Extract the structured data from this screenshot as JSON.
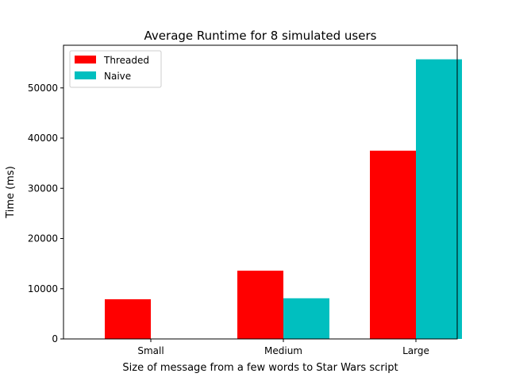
{
  "chart_data": {
    "type": "bar",
    "title": "Average Runtime for 8 simulated users",
    "xlabel": "Size of message from a few words to Star Wars script",
    "ylabel": "Time (ms)",
    "categories": [
      "Small",
      "Medium",
      "Large"
    ],
    "series": [
      {
        "name": "Threaded",
        "color": "#ff0000",
        "values": [
          7900,
          13600,
          37500
        ]
      },
      {
        "name": "Naive",
        "color": "#00bfbf",
        "values": [
          0,
          8100,
          55700
        ]
      }
    ],
    "ylim": [
      0,
      58500
    ],
    "yticks": [
      0,
      10000,
      20000,
      30000,
      40000,
      50000
    ],
    "grid": false,
    "legend_position": "top-left"
  }
}
